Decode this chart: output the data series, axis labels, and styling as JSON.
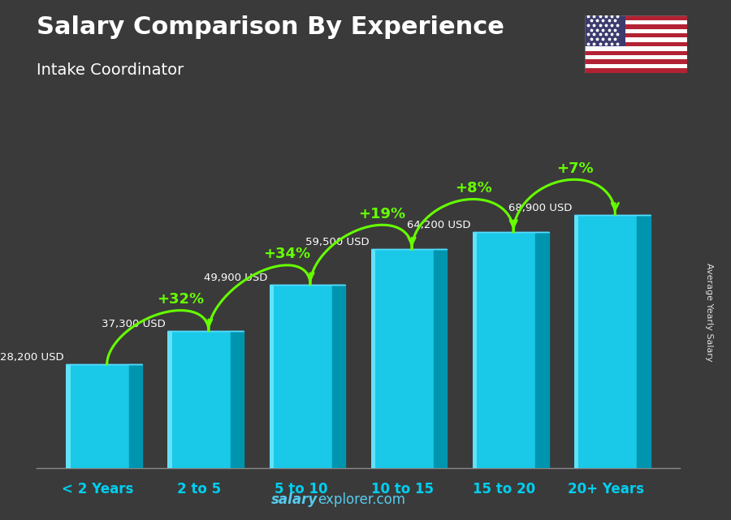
{
  "title": "Salary Comparison By Experience",
  "subtitle": "Intake Coordinator",
  "categories": [
    "< 2 Years",
    "2 to 5",
    "5 to 10",
    "10 to 15",
    "15 to 20",
    "20+ Years"
  ],
  "values": [
    28200,
    37300,
    49900,
    59500,
    64200,
    68900
  ],
  "value_labels": [
    "28,200 USD",
    "37,300 USD",
    "49,900 USD",
    "59,500 USD",
    "64,200 USD",
    "68,900 USD"
  ],
  "pct_labels": [
    "+32%",
    "+34%",
    "+19%",
    "+8%",
    "+7%"
  ],
  "bar_face_color": "#1AC8E8",
  "bar_right_color": "#0095AF",
  "bar_top_color": "#55DDFF",
  "bar_highlight_color": "#80EEFF",
  "ylabel": "Average Yearly Salary",
  "pct_color": "#66FF00",
  "value_label_color": "#FFFFFF",
  "title_color": "#FFFFFF",
  "subtitle_color": "#FFFFFF",
  "xtick_color": "#00CFEF",
  "background_color": "#3a3a3a",
  "bar_width": 0.62,
  "depth": 0.13,
  "ylim": [
    0,
    82000
  ],
  "watermark_bold": "salary",
  "watermark_normal": "explorer.com"
}
